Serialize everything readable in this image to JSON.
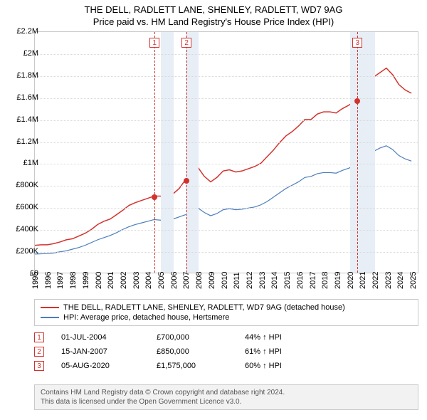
{
  "title": {
    "line1": "THE DELL, RADLETT LANE, SHENLEY, RADLETT, WD7 9AG",
    "line2": "Price paid vs. HM Land Registry's House Price Index (HPI)"
  },
  "chart": {
    "type": "line",
    "background_color": "#ffffff",
    "border_color": "#c9c9c9",
    "grid_color": "#d9d9d9",
    "x_range": [
      1995,
      2025.5
    ],
    "y_range": [
      0,
      2200000
    ],
    "y_ticks": [
      0,
      200000,
      400000,
      600000,
      800000,
      1000000,
      1200000,
      1400000,
      1600000,
      1800000,
      2000000,
      2200000
    ],
    "y_tick_labels": [
      "£0",
      "£200K",
      "£400K",
      "£600K",
      "£800K",
      "£1M",
      "£1.2M",
      "£1.4M",
      "£1.6M",
      "£1.8M",
      "£2M",
      "£2.2M"
    ],
    "x_ticks": [
      1995,
      1996,
      1997,
      1998,
      1999,
      2000,
      2001,
      2002,
      2003,
      2004,
      2005,
      2006,
      2007,
      2008,
      2009,
      2010,
      2011,
      2012,
      2013,
      2014,
      2015,
      2016,
      2017,
      2018,
      2019,
      2020,
      2021,
      2022,
      2023,
      2024,
      2025
    ],
    "shaded_years": [
      2005,
      2007,
      2020,
      2021
    ],
    "shade_color": "#e8eef5",
    "series": [
      {
        "name": "property",
        "label": "THE DELL, RADLETT LANE, SHENLEY, RADLETT, WD7 9AG (detached house)",
        "color": "#d2322d",
        "line_width": 1.5,
        "points": [
          [
            1995.0,
            250000
          ],
          [
            1995.5,
            255000
          ],
          [
            1996.0,
            255000
          ],
          [
            1996.5,
            265000
          ],
          [
            1997.0,
            280000
          ],
          [
            1997.5,
            300000
          ],
          [
            1998.0,
            310000
          ],
          [
            1998.5,
            335000
          ],
          [
            1999.0,
            360000
          ],
          [
            1999.5,
            395000
          ],
          [
            2000.0,
            440000
          ],
          [
            2000.5,
            470000
          ],
          [
            2001.0,
            490000
          ],
          [
            2001.5,
            530000
          ],
          [
            2002.0,
            570000
          ],
          [
            2002.5,
            615000
          ],
          [
            2003.0,
            640000
          ],
          [
            2003.5,
            660000
          ],
          [
            2004.0,
            680000
          ],
          [
            2004.5,
            700000
          ],
          [
            2005.0,
            700000
          ],
          [
            2005.5,
            690000
          ],
          [
            2006.0,
            720000
          ],
          [
            2006.5,
            770000
          ],
          [
            2007.0,
            850000
          ],
          [
            2007.5,
            900000
          ],
          [
            2008.0,
            960000
          ],
          [
            2008.5,
            880000
          ],
          [
            2009.0,
            830000
          ],
          [
            2009.5,
            870000
          ],
          [
            2010.0,
            930000
          ],
          [
            2010.5,
            940000
          ],
          [
            2011.0,
            920000
          ],
          [
            2011.5,
            930000
          ],
          [
            2012.0,
            950000
          ],
          [
            2012.5,
            970000
          ],
          [
            2013.0,
            1000000
          ],
          [
            2013.5,
            1060000
          ],
          [
            2014.0,
            1120000
          ],
          [
            2014.5,
            1190000
          ],
          [
            2015.0,
            1250000
          ],
          [
            2015.5,
            1290000
          ],
          [
            2016.0,
            1340000
          ],
          [
            2016.5,
            1400000
          ],
          [
            2017.0,
            1400000
          ],
          [
            2017.5,
            1450000
          ],
          [
            2018.0,
            1470000
          ],
          [
            2018.5,
            1470000
          ],
          [
            2019.0,
            1460000
          ],
          [
            2019.5,
            1500000
          ],
          [
            2020.0,
            1530000
          ],
          [
            2020.6,
            1575000
          ],
          [
            2021.0,
            1640000
          ],
          [
            2021.5,
            1720000
          ],
          [
            2022.0,
            1790000
          ],
          [
            2022.5,
            1830000
          ],
          [
            2023.0,
            1870000
          ],
          [
            2023.5,
            1810000
          ],
          [
            2024.0,
            1720000
          ],
          [
            2024.5,
            1670000
          ],
          [
            2025.0,
            1640000
          ]
        ]
      },
      {
        "name": "hpi",
        "label": "HPI: Average price, detached house, Hertsmere",
        "color": "#4a7ebb",
        "line_width": 1.2,
        "points": [
          [
            1995.0,
            170000
          ],
          [
            1995.5,
            172000
          ],
          [
            1996.0,
            175000
          ],
          [
            1996.5,
            180000
          ],
          [
            1997.0,
            190000
          ],
          [
            1997.5,
            200000
          ],
          [
            1998.0,
            215000
          ],
          [
            1998.5,
            230000
          ],
          [
            1999.0,
            250000
          ],
          [
            1999.5,
            275000
          ],
          [
            2000.0,
            300000
          ],
          [
            2000.5,
            320000
          ],
          [
            2001.0,
            340000
          ],
          [
            2001.5,
            365000
          ],
          [
            2002.0,
            395000
          ],
          [
            2002.5,
            420000
          ],
          [
            2003.0,
            440000
          ],
          [
            2003.5,
            455000
          ],
          [
            2004.0,
            470000
          ],
          [
            2004.5,
            485000
          ],
          [
            2005.0,
            480000
          ],
          [
            2005.5,
            475000
          ],
          [
            2006.0,
            490000
          ],
          [
            2006.5,
            510000
          ],
          [
            2007.0,
            530000
          ],
          [
            2007.5,
            560000
          ],
          [
            2008.0,
            590000
          ],
          [
            2008.5,
            550000
          ],
          [
            2009.0,
            520000
          ],
          [
            2009.5,
            540000
          ],
          [
            2010.0,
            575000
          ],
          [
            2010.5,
            585000
          ],
          [
            2011.0,
            575000
          ],
          [
            2011.5,
            580000
          ],
          [
            2012.0,
            590000
          ],
          [
            2012.5,
            600000
          ],
          [
            2013.0,
            620000
          ],
          [
            2013.5,
            650000
          ],
          [
            2014.0,
            690000
          ],
          [
            2014.5,
            730000
          ],
          [
            2015.0,
            770000
          ],
          [
            2015.5,
            800000
          ],
          [
            2016.0,
            830000
          ],
          [
            2016.5,
            870000
          ],
          [
            2017.0,
            880000
          ],
          [
            2017.5,
            905000
          ],
          [
            2018.0,
            915000
          ],
          [
            2018.5,
            915000
          ],
          [
            2019.0,
            910000
          ],
          [
            2019.5,
            935000
          ],
          [
            2020.0,
            955000
          ],
          [
            2020.6,
            985000
          ],
          [
            2021.0,
            1020000
          ],
          [
            2021.5,
            1070000
          ],
          [
            2022.0,
            1110000
          ],
          [
            2022.5,
            1140000
          ],
          [
            2023.0,
            1160000
          ],
          [
            2023.5,
            1125000
          ],
          [
            2024.0,
            1070000
          ],
          [
            2024.5,
            1040000
          ],
          [
            2025.0,
            1020000
          ]
        ]
      }
    ],
    "sale_markers": [
      {
        "num": "1",
        "x": 2004.5,
        "y": 700000
      },
      {
        "num": "2",
        "x": 2007.04,
        "y": 850000
      },
      {
        "num": "3",
        "x": 2020.6,
        "y": 1575000
      }
    ],
    "marker_line_color": "#d2322d"
  },
  "legend": {
    "border_color": "#c9c9c9",
    "items": [
      {
        "color": "#d2322d",
        "label": "THE DELL, RADLETT LANE, SHENLEY, RADLETT, WD7 9AG (detached house)"
      },
      {
        "color": "#4a7ebb",
        "label": "HPI: Average price, detached house, Hertsmere"
      }
    ]
  },
  "sales": [
    {
      "num": "1",
      "date": "01-JUL-2004",
      "price": "£700,000",
      "pct": "44% ↑ HPI"
    },
    {
      "num": "2",
      "date": "15-JAN-2007",
      "price": "£850,000",
      "pct": "61% ↑ HPI"
    },
    {
      "num": "3",
      "date": "05-AUG-2020",
      "price": "£1,575,000",
      "pct": "60% ↑ HPI"
    }
  ],
  "footer": {
    "line1": "Contains HM Land Registry data © Crown copyright and database right 2024.",
    "line2": "This data is licensed under the Open Government Licence v3.0."
  }
}
